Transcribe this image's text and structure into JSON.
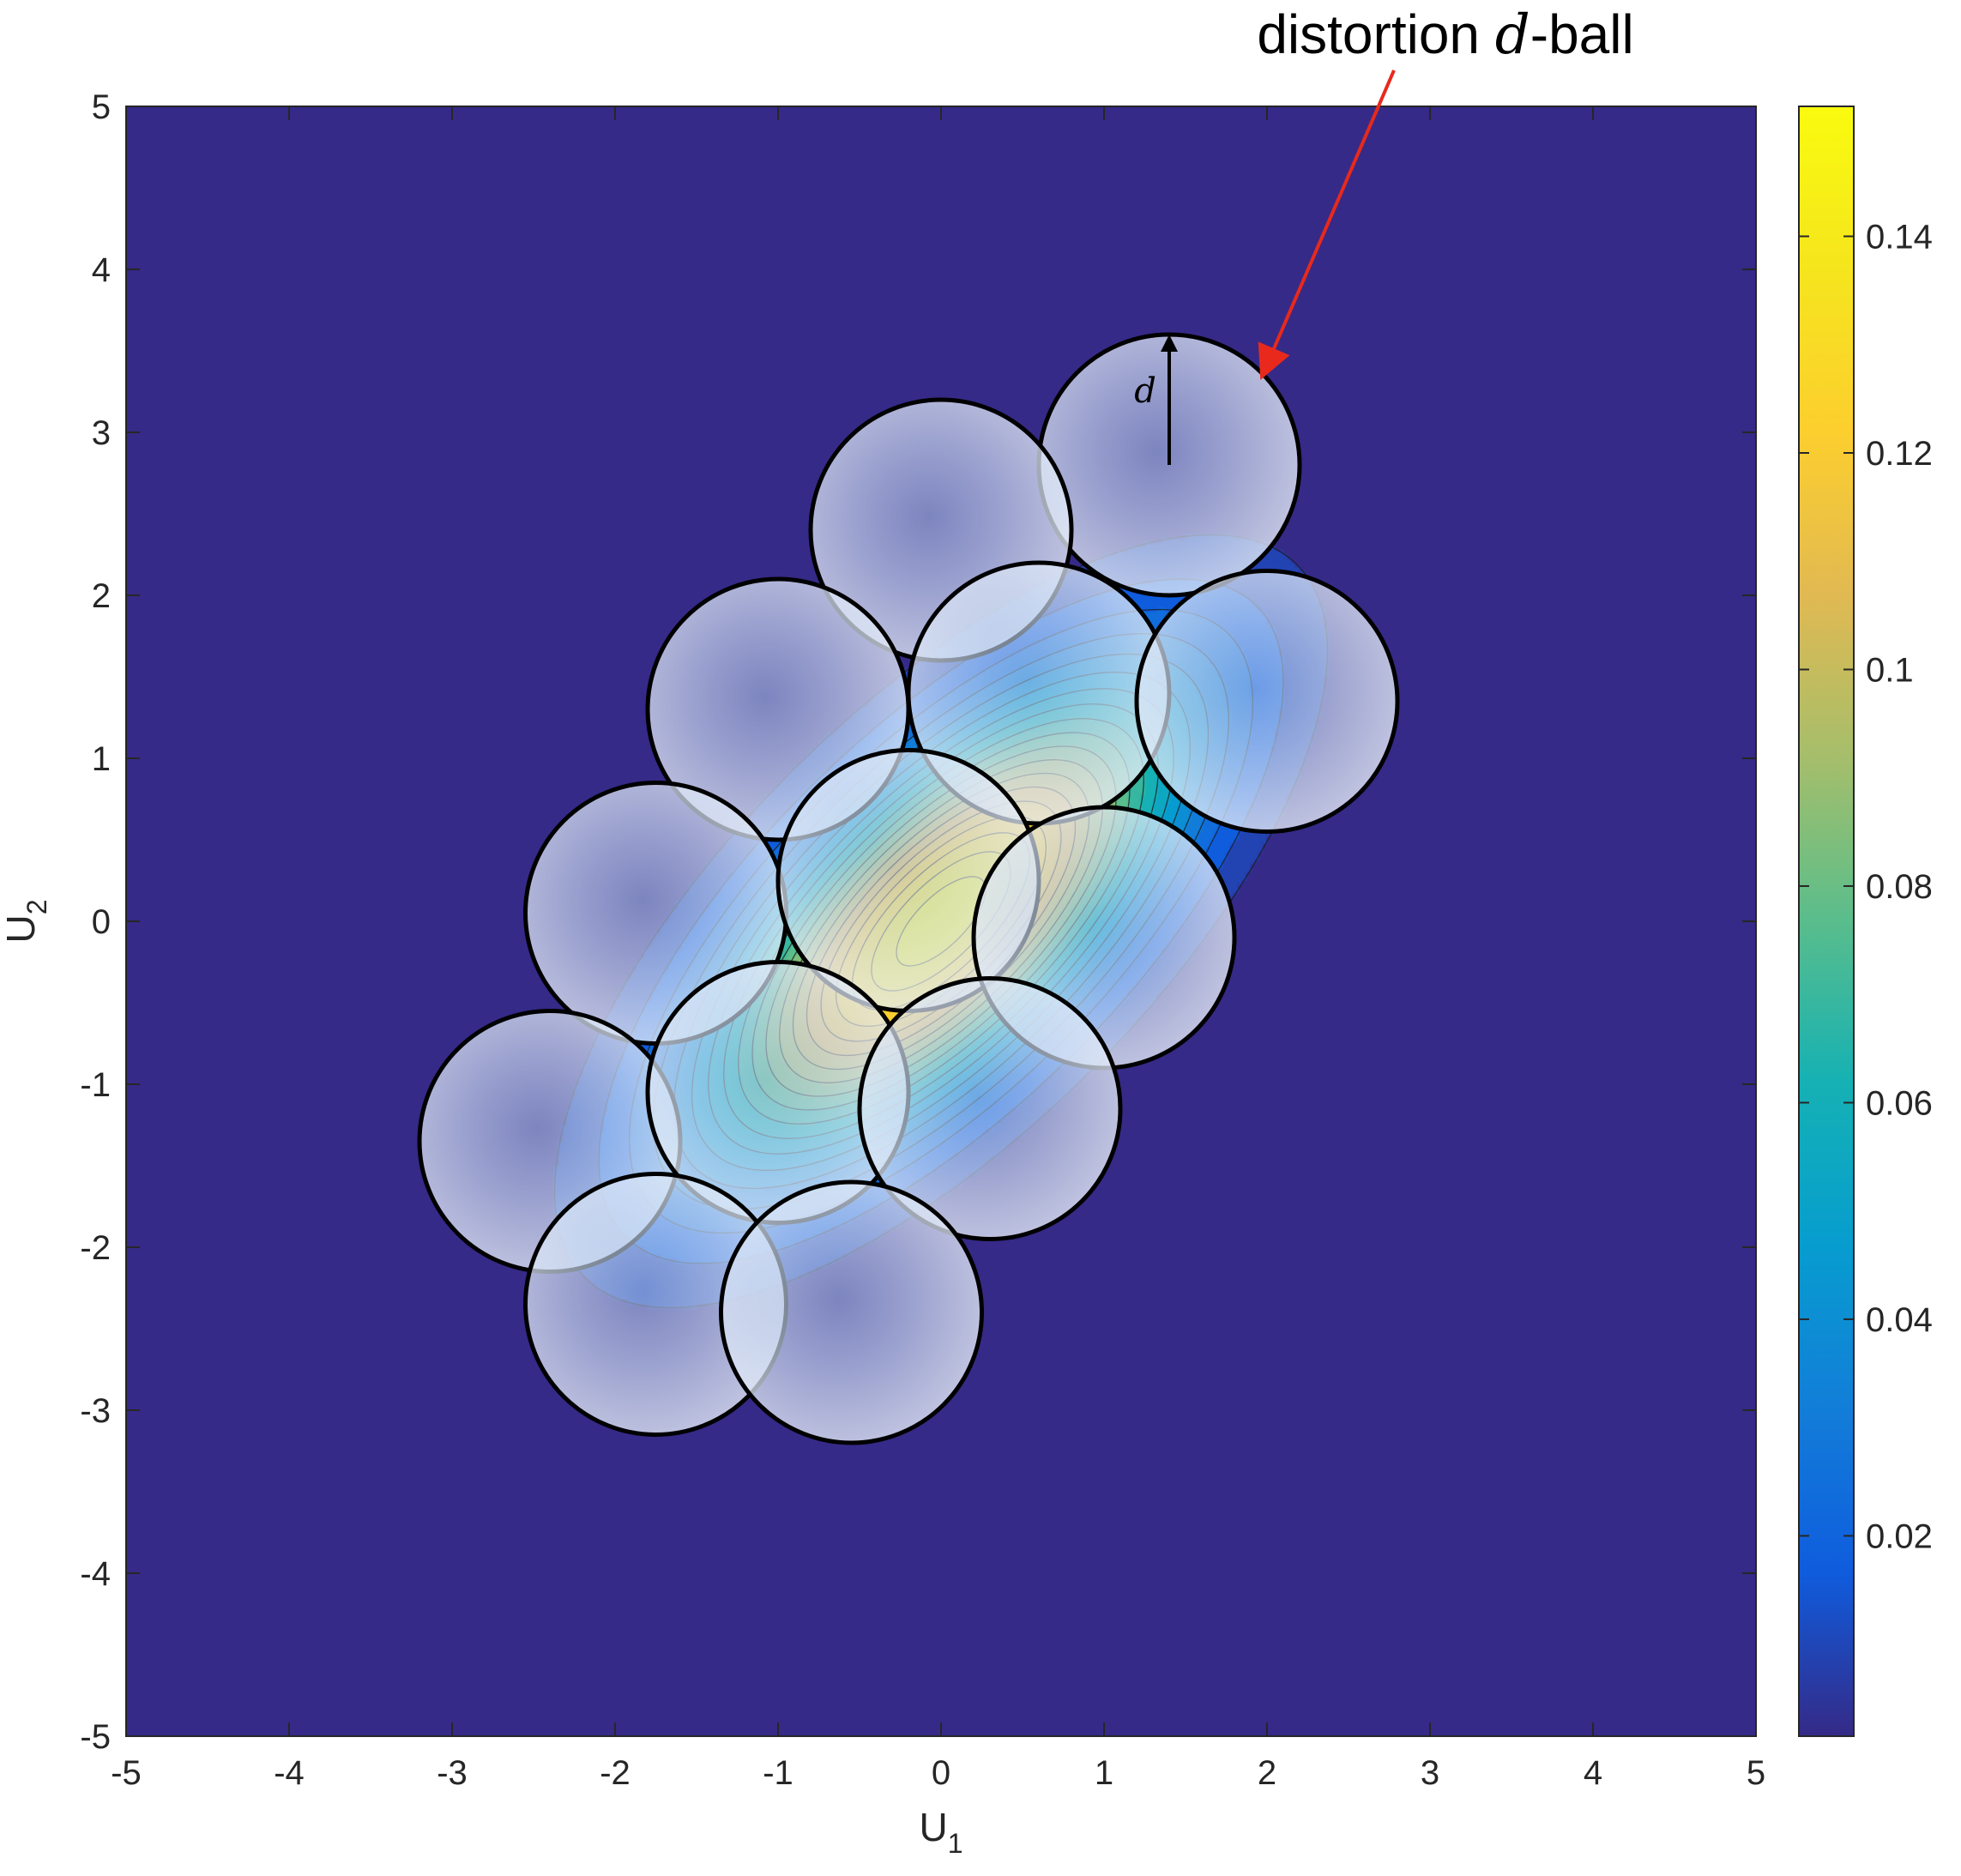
{
  "chart_data": {
    "type": "heatmap",
    "subtype": "filled-contour with overlaid distortion balls",
    "title": "",
    "xlabel": "U",
    "xlabel_subscript": "1",
    "ylabel": "U",
    "ylabel_subscript": "2",
    "xlim": [
      -5,
      5
    ],
    "ylim": [
      -5,
      5
    ],
    "xticks": [
      -5,
      -4,
      -3,
      -2,
      -1,
      0,
      1,
      2,
      3,
      4,
      5
    ],
    "yticks": [
      -5,
      -4,
      -3,
      -2,
      -1,
      0,
      1,
      2,
      3,
      4,
      5
    ],
    "xtick_labels": [
      "-5",
      "-4",
      "-3",
      "-2",
      "-1",
      "0",
      "1",
      "2",
      "3",
      "4",
      "5"
    ],
    "ytick_labels": [
      "-5",
      "-4",
      "-3",
      "-2",
      "-1",
      "0",
      "1",
      "2",
      "3",
      "4",
      "5"
    ],
    "density": {
      "kind": "bivariate gaussian",
      "mean": [
        0,
        0
      ],
      "correlation": 0.7,
      "peak_value": 0.15,
      "contour_levels": 20
    },
    "colorbar": {
      "colormap": "parula",
      "range": [
        0.0015,
        0.152
      ],
      "ticks": [
        0.02,
        0.04,
        0.06,
        0.08,
        0.1,
        0.12,
        0.14
      ],
      "tick_labels": [
        "0.02",
        "0.04",
        "0.06",
        "0.08",
        "0.1",
        "0.12",
        "0.14"
      ],
      "placement": "right"
    },
    "balls": {
      "radius": 0.8,
      "centers": [
        [
          1.4,
          2.8
        ],
        [
          0.0,
          2.4
        ],
        [
          -1.0,
          1.3
        ],
        [
          0.6,
          1.4
        ],
        [
          2.0,
          1.35
        ],
        [
          -1.75,
          0.05
        ],
        [
          -0.2,
          0.25
        ],
        [
          1.0,
          -0.1
        ],
        [
          -2.4,
          -1.35
        ],
        [
          -1.0,
          -1.05
        ],
        [
          0.3,
          -1.15
        ],
        [
          -1.75,
          -2.35
        ],
        [
          -0.55,
          -2.4
        ]
      ]
    },
    "annotation": {
      "text_before": "distortion ",
      "text_italic": "d",
      "text_after": "-ball",
      "arrow_color": "#e8291c",
      "radius_label": "d"
    }
  }
}
